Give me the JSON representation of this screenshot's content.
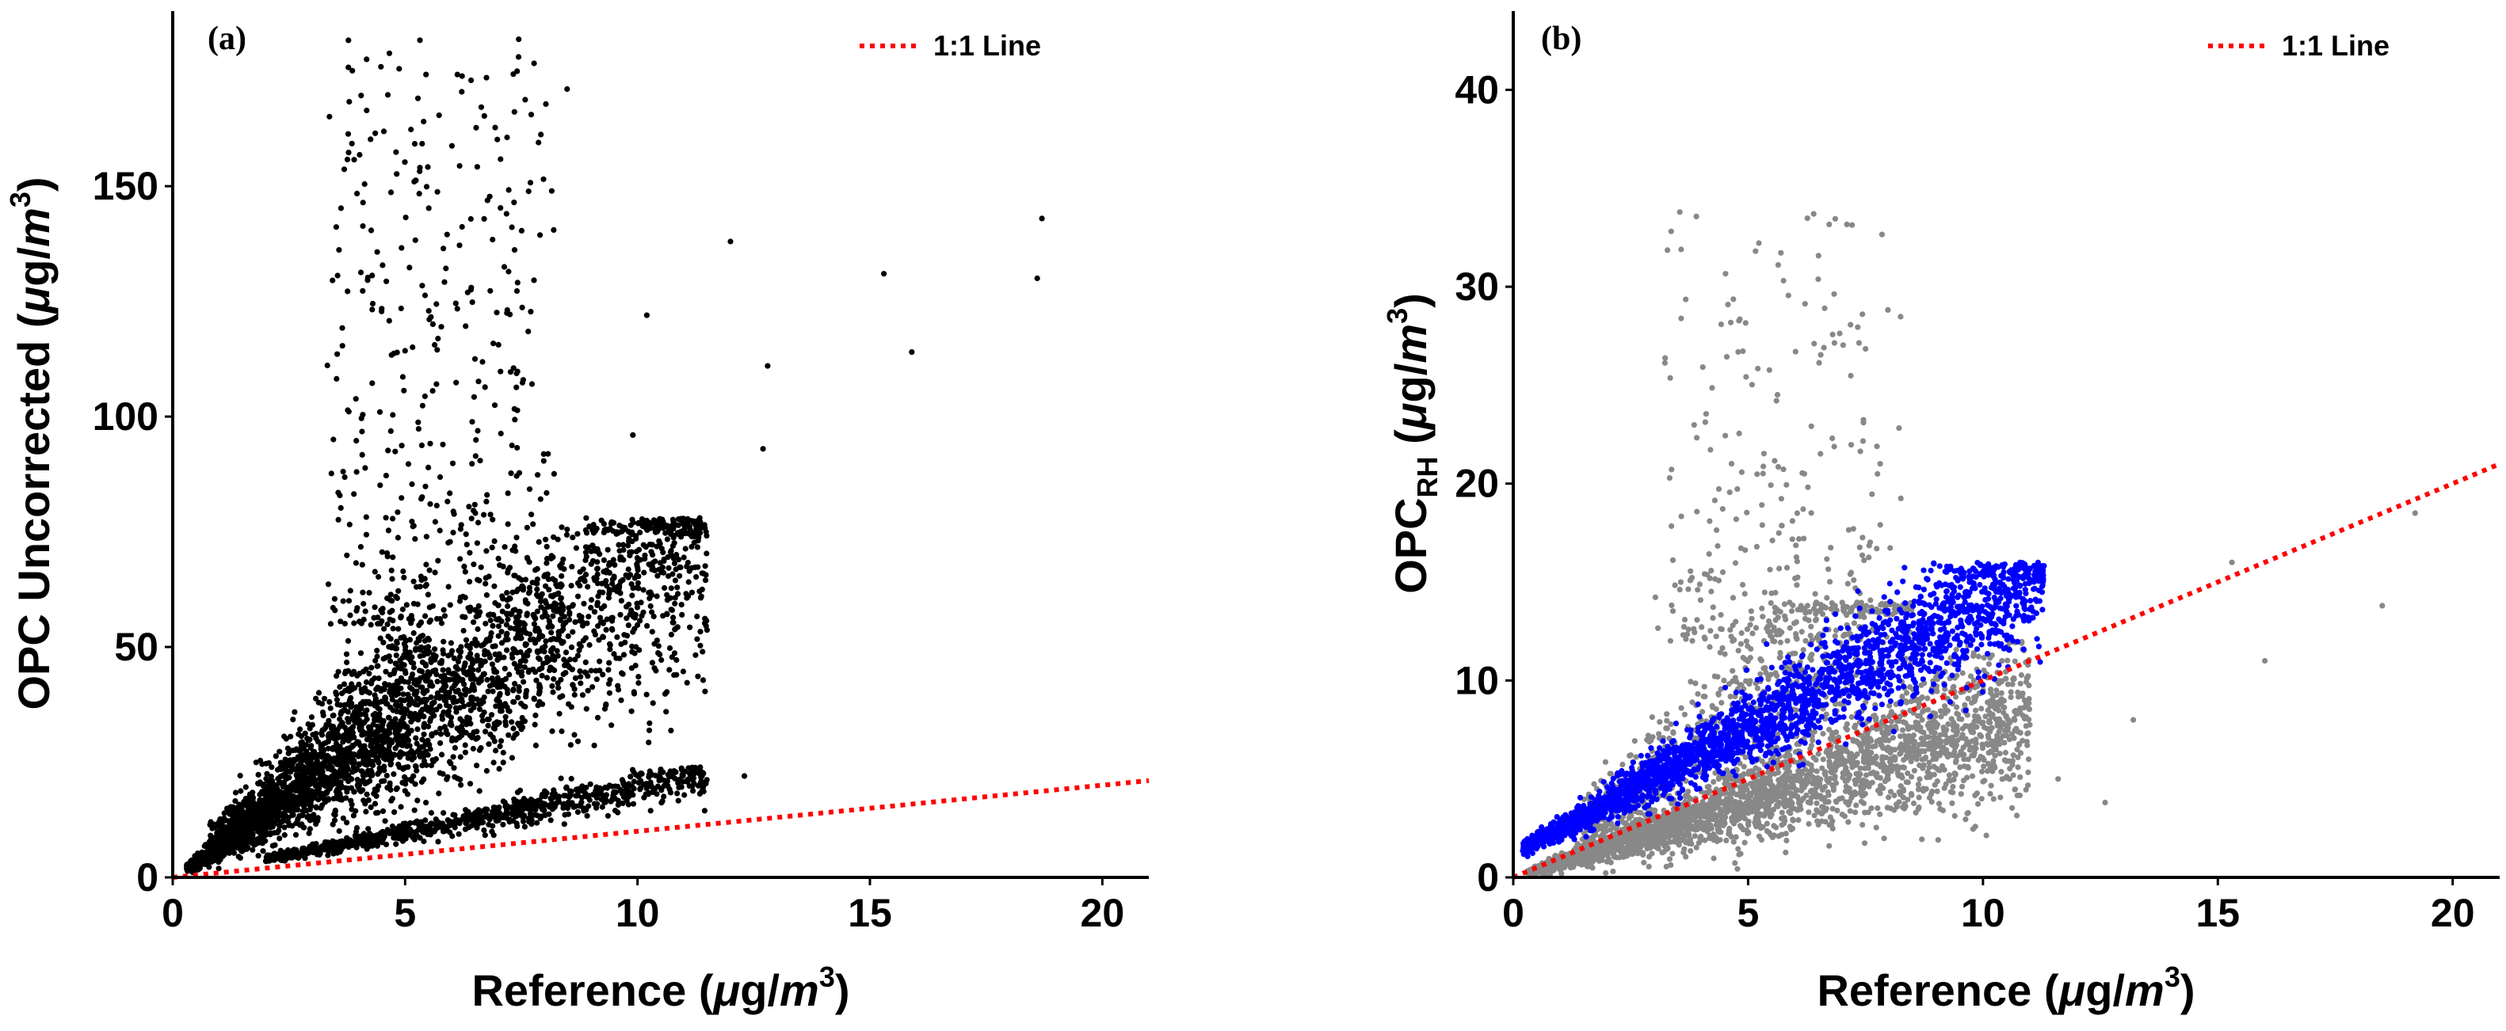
{
  "chart_data": [
    {
      "type": "scatter",
      "panel_label": "(a)",
      "xlabel": {
        "main": "Reference (",
        "mu": "μ",
        "unit": "g/",
        "m": "m",
        "exp": "3",
        "close": ")"
      },
      "ylabel": {
        "main": "OPC Uncorrected (",
        "mu": "μ",
        "unit": "g/",
        "m": "m",
        "exp": "3",
        "close": ")"
      },
      "xlim": [
        0,
        21
      ],
      "ylim": [
        0,
        188
      ],
      "xticks": [
        0,
        5,
        10,
        15,
        20
      ],
      "xtick_labels": [
        "0",
        "5",
        "10",
        "15",
        "20"
      ],
      "yticks": [
        0,
        50,
        100,
        150
      ],
      "ytick_labels": [
        "0",
        "50",
        "100",
        "150"
      ],
      "grid": false,
      "legend": {
        "position": "top-right",
        "entries": [
          {
            "label": "1:1 Line",
            "style": "dotted",
            "color": "#ff0000"
          }
        ]
      },
      "reference_line": {
        "from": [
          0,
          0
        ],
        "to": [
          21,
          21
        ],
        "color": "#ff0000"
      },
      "series": [
        {
          "name": "OPC Uncorrected",
          "color": "#000000",
          "description_clusters": [
            {
              "xrange": [
                0.3,
                11.5
              ],
              "slope": 6.5,
              "spread": 0.22,
              "n": 2600,
              "ymax": 78
            },
            {
              "xrange": [
                0.8,
                5.5
              ],
              "slope": 8.5,
              "spread": 0.25,
              "n": 900,
              "ymax": 70
            },
            {
              "xrange": [
                2.0,
                11.5
              ],
              "slope": 1.95,
              "spread": 0.1,
              "n": 900,
              "ymax": 24
            },
            {
              "xrange": [
                3.5,
                8.0
              ],
              "yrange": [
                55,
                182
              ],
              "n": 420
            }
          ],
          "outliers": [
            [
              12.0,
              138
            ],
            [
              12.8,
              111
            ],
            [
              12.7,
              93
            ],
            [
              15.3,
              131
            ],
            [
              15.9,
              114
            ],
            [
              18.7,
              143
            ],
            [
              18.6,
              130
            ],
            [
              10.2,
              122
            ],
            [
              9.9,
              96
            ],
            [
              11.4,
              20
            ],
            [
              12.3,
              22
            ]
          ]
        }
      ]
    },
    {
      "type": "scatter",
      "panel_label": "(b)",
      "xlabel": {
        "main": "Reference (",
        "mu": "μ",
        "unit": "g/",
        "m": "m",
        "exp": "3",
        "close": ")"
      },
      "ylabel": {
        "main": "OPC",
        "sub": "RH",
        "open": " (",
        "mu": "μ",
        "unit": "g/",
        "m": "m",
        "exp": "3",
        "close": ")"
      },
      "xlim": [
        0,
        21
      ],
      "ylim": [
        0,
        44
      ],
      "xticks": [
        0,
        5,
        10,
        15,
        20
      ],
      "xtick_labels": [
        "0",
        "5",
        "10",
        "15",
        "20"
      ],
      "yticks": [
        0,
        10,
        20,
        30,
        40
      ],
      "ytick_labels": [
        "0",
        "10",
        "20",
        "30",
        "40"
      ],
      "grid": false,
      "legend": {
        "position": "top-right",
        "entries": [
          {
            "label": "1:1 Line",
            "style": "dotted",
            "color": "#ff0000"
          }
        ]
      },
      "reference_line": {
        "from": [
          0,
          0
        ],
        "to": [
          21,
          21
        ],
        "color": "#ff0000"
      },
      "series": [
        {
          "name": "OPC uncorrected-derived (grey)",
          "color": "#888888",
          "description_clusters": [
            {
              "xrange": [
                0.3,
                11.0
              ],
              "slope": 0.78,
              "spread": 0.25,
              "n": 2800,
              "ymax": 12
            },
            {
              "xrange": [
                1.5,
                8.5
              ],
              "slope": 1.8,
              "spread": 0.25,
              "n": 700,
              "ymax": 14
            },
            {
              "xrange": [
                3.5,
                8.0
              ],
              "yrange": [
                12,
                34
              ],
              "n": 260
            }
          ],
          "outliers": [
            [
              16.0,
              11.0
            ],
            [
              18.5,
              13.8
            ],
            [
              15.3,
              16.0
            ],
            [
              19.2,
              18.5
            ],
            [
              12.6,
              3.8
            ],
            [
              13.2,
              8.0
            ],
            [
              11.6,
              5.0
            ]
          ]
        },
        {
          "name": "OPC RH corrected (blue)",
          "color": "#0000ff",
          "description_clusters": [
            {
              "xrange": [
                0.2,
                11.3
              ],
              "intercept": 1.2,
              "slope": 1.28,
              "spread": 0.12,
              "n": 2600,
              "ymax": 16
            }
          ],
          "outliers": []
        }
      ]
    }
  ]
}
